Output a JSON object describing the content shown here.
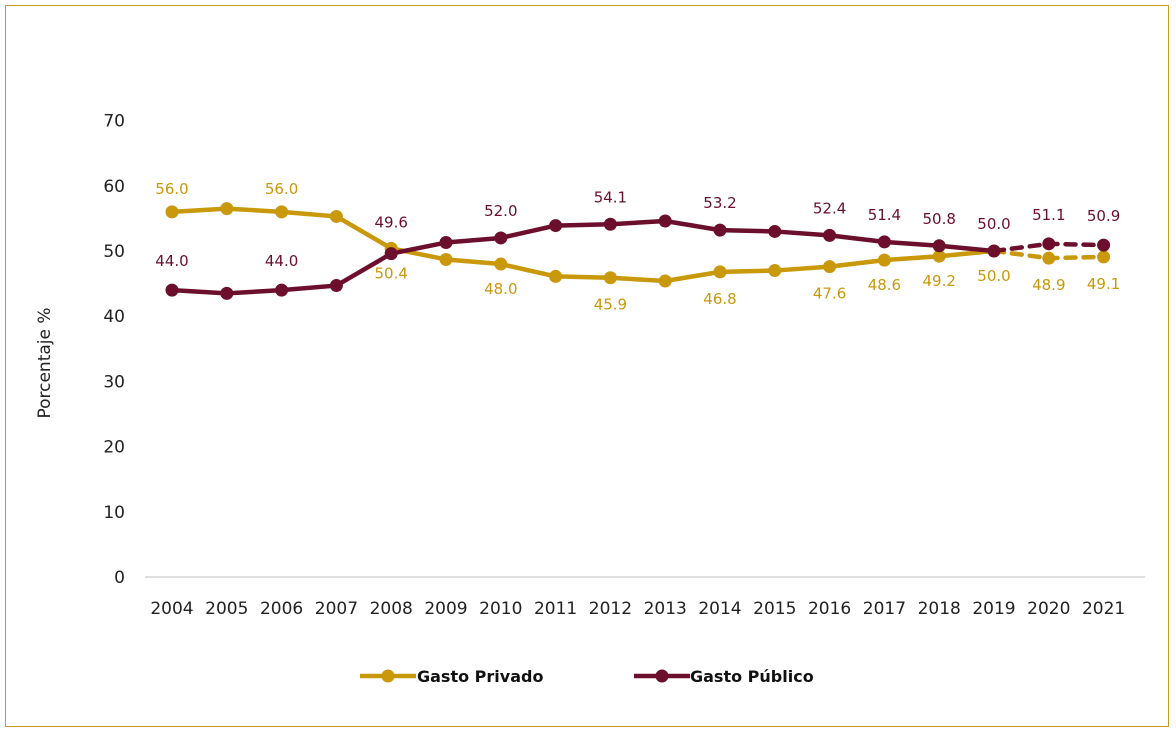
{
  "chart_data": {
    "type": "line",
    "ylabel": "Porcentaje %",
    "xlabel": "",
    "ylim": [
      0,
      70
    ],
    "yticks": [
      "0",
      "10",
      "20",
      "30",
      "40",
      "50",
      "60",
      "70"
    ],
    "categories": [
      "2004",
      "2005",
      "2006",
      "2007",
      "2008",
      "2009",
      "2010",
      "2011",
      "2012",
      "2013",
      "2014",
      "2015",
      "2016",
      "2017",
      "2018",
      "2019",
      "2020",
      "2021"
    ],
    "series": [
      {
        "name": "Gasto Privado",
        "color": "#c9980b",
        "values": [
          56.0,
          56.5,
          56.0,
          55.3,
          50.4,
          48.7,
          48.0,
          46.1,
          45.9,
          45.4,
          46.8,
          47.0,
          47.6,
          48.6,
          49.2,
          50.0,
          48.9,
          49.1
        ],
        "labels": [
          "56.0",
          "",
          "56.0",
          "",
          "50.4",
          "",
          "48.0",
          "",
          "45.9",
          "",
          "46.8",
          "",
          "47.6",
          "48.6",
          "49.2",
          "50.0",
          "48.9",
          "49.1"
        ],
        "dashed_from_index": 15
      },
      {
        "name": "Gasto Público",
        "color": "#6b0f2c",
        "values": [
          44.0,
          43.5,
          44.0,
          44.7,
          49.6,
          51.3,
          52.0,
          53.9,
          54.1,
          54.6,
          53.2,
          53.0,
          52.4,
          51.4,
          50.8,
          50.0,
          51.1,
          50.9
        ],
        "labels": [
          "44.0",
          "",
          "44.0",
          "",
          "49.6",
          "",
          "52.0",
          "",
          "54.1",
          "",
          "53.2",
          "",
          "52.4",
          "51.4",
          "50.8",
          "50.0",
          "51.1",
          "50.9"
        ],
        "dashed_from_index": 15
      }
    ],
    "grid": false,
    "legend_position": "bottom"
  }
}
